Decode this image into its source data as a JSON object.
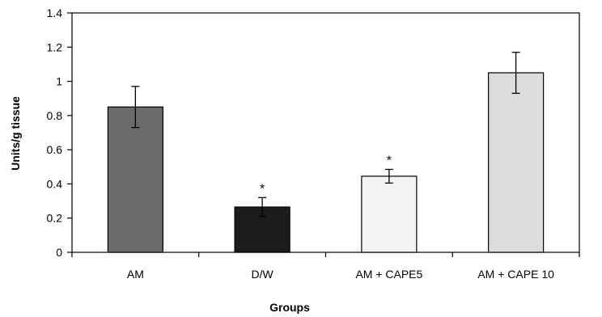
{
  "chart_data": {
    "type": "bar",
    "title": "",
    "xlabel": "Groups",
    "ylabel": "Units/g tissue",
    "ylim": [
      0,
      1.4
    ],
    "yticks": [
      0,
      0.2,
      0.4,
      0.6,
      0.8,
      1,
      1.2,
      1.4
    ],
    "ytick_labels": [
      "0",
      "0.2",
      "0.4",
      "0.6",
      "0.8",
      "1",
      "1.2",
      "1.4"
    ],
    "grid": false,
    "legend": "none",
    "categories": [
      "AM",
      "D/W",
      "AM + CAPE5",
      "AM + CAPE 10"
    ],
    "values": [
      0.85,
      0.265,
      0.445,
      1.05
    ],
    "error": [
      0.12,
      0.055,
      0.04,
      0.12
    ],
    "significance": [
      "",
      "*",
      "*",
      ""
    ],
    "bar_colors": [
      "#6b6b6b",
      "#1c1c1c",
      "#f3f3f3",
      "#dcdcdc"
    ]
  }
}
